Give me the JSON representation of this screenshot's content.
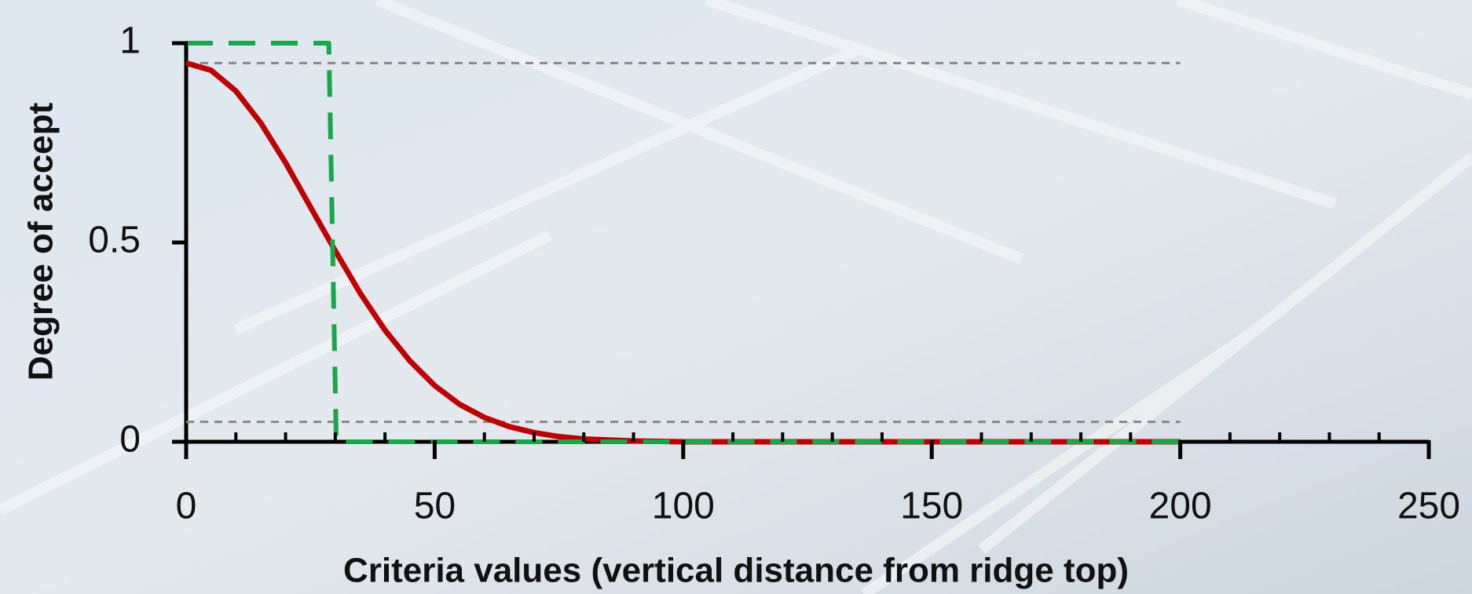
{
  "chart_data": {
    "type": "line",
    "x_label": "Criteria values (vertical distance from ridge top)",
    "y_label": "Degree of accept",
    "xlim": [
      0,
      250
    ],
    "ylim": [
      0,
      1
    ],
    "xticks": [
      0,
      50,
      100,
      150,
      200,
      250
    ],
    "xminorticks": [
      10,
      20,
      30,
      40,
      60,
      70,
      80,
      90,
      110,
      120,
      130,
      140,
      160,
      170,
      180,
      190,
      210,
      220,
      230,
      240
    ],
    "yticks": [
      0,
      0.5,
      1
    ],
    "series": [
      {
        "color": "#888888",
        "dash": "short",
        "width": 3,
        "x": [
          0,
          200
        ],
        "values": [
          0.95,
          0.95
        ]
      },
      {
        "color": "#888888",
        "dash": "short",
        "width": 3,
        "x": [
          0,
          200
        ],
        "values": [
          0.05,
          0.05
        ]
      },
      {
        "color": "#c00000",
        "dash": "solid",
        "width": 7,
        "x": [
          0,
          5,
          10,
          15,
          20,
          25,
          30,
          35,
          40,
          45,
          50,
          55,
          60,
          65,
          70,
          75,
          80,
          90,
          100,
          150,
          200
        ],
        "values": [
          0.95,
          0.932,
          0.88,
          0.8,
          0.7,
          0.589,
          0.479,
          0.373,
          0.28,
          0.203,
          0.141,
          0.094,
          0.061,
          0.038,
          0.023,
          0.013,
          0.007,
          0.002,
          0,
          0,
          0
        ]
      },
      {
        "color": "#1aa64a",
        "dash": "long",
        "width": 6,
        "x": [
          0,
          28.7,
          30.2,
          200
        ],
        "values": [
          1,
          1,
          0,
          0
        ]
      }
    ]
  }
}
